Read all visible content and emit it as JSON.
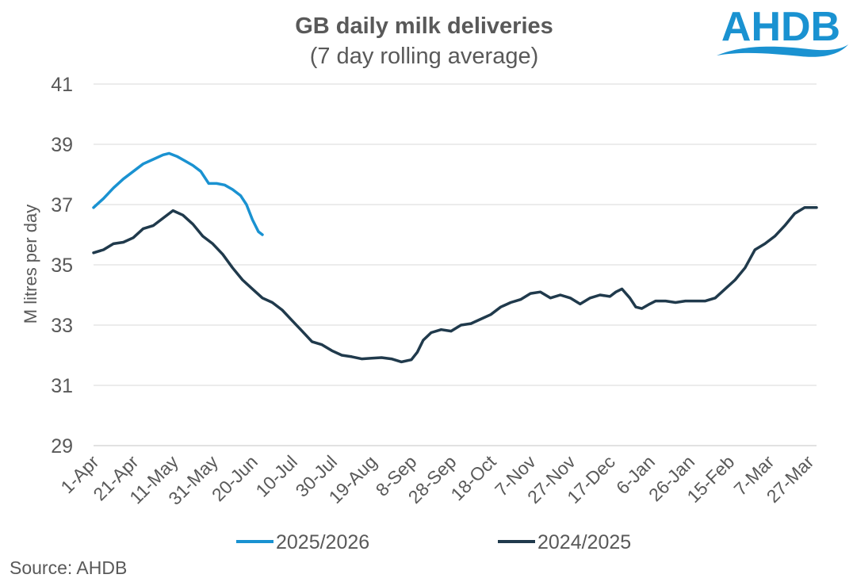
{
  "logo": {
    "text": "AHDB",
    "color": "#1a92d1"
  },
  "source": "Source: AHDB",
  "chart_data": {
    "type": "line",
    "title": "GB daily milk deliveries",
    "subtitle": "(7 day rolling average)",
    "xlabel": "",
    "ylabel": "M litres per day",
    "ylim": [
      29,
      41
    ],
    "yticks": [
      29,
      31,
      33,
      35,
      37,
      39,
      41
    ],
    "xlim": [
      0,
      364
    ],
    "grid": true,
    "legend_position": "bottom",
    "x_tick_labels": [
      "1-Apr",
      "21-Apr",
      "11-May",
      "31-May",
      "20-Jun",
      "10-Jul",
      "30-Jul",
      "19-Aug",
      "8-Sep",
      "28-Sep",
      "18-Oct",
      "7-Nov",
      "27-Nov",
      "17-Dec",
      "6-Jan",
      "26-Jan",
      "15-Feb",
      "7-Mar",
      "27-Mar"
    ],
    "x_tick_positions": [
      0,
      20,
      40,
      60,
      80,
      100,
      120,
      140,
      160,
      180,
      200,
      220,
      240,
      260,
      280,
      300,
      320,
      340,
      360
    ],
    "series": [
      {
        "name": "2025/2026",
        "color": "#1a92d1",
        "points": [
          [
            0,
            36.9
          ],
          [
            5,
            37.2
          ],
          [
            10,
            37.55
          ],
          [
            15,
            37.85
          ],
          [
            20,
            38.1
          ],
          [
            25,
            38.35
          ],
          [
            30,
            38.5
          ],
          [
            35,
            38.65
          ],
          [
            38,
            38.7
          ],
          [
            42,
            38.6
          ],
          [
            46,
            38.45
          ],
          [
            50,
            38.3
          ],
          [
            54,
            38.1
          ],
          [
            58,
            37.7
          ],
          [
            62,
            37.7
          ],
          [
            66,
            37.65
          ],
          [
            70,
            37.5
          ],
          [
            74,
            37.3
          ],
          [
            77,
            37.0
          ],
          [
            80,
            36.5
          ],
          [
            83,
            36.1
          ],
          [
            85,
            36.0
          ]
        ]
      },
      {
        "name": "2024/2025",
        "color": "#203a4c",
        "points": [
          [
            0,
            35.4
          ],
          [
            5,
            35.5
          ],
          [
            10,
            35.7
          ],
          [
            15,
            35.75
          ],
          [
            20,
            35.9
          ],
          [
            25,
            36.2
          ],
          [
            30,
            36.3
          ],
          [
            35,
            36.55
          ],
          [
            40,
            36.8
          ],
          [
            45,
            36.65
          ],
          [
            50,
            36.35
          ],
          [
            55,
            35.95
          ],
          [
            60,
            35.7
          ],
          [
            65,
            35.35
          ],
          [
            70,
            34.9
          ],
          [
            75,
            34.5
          ],
          [
            80,
            34.2
          ],
          [
            85,
            33.9
          ],
          [
            90,
            33.75
          ],
          [
            95,
            33.5
          ],
          [
            100,
            33.15
          ],
          [
            105,
            32.8
          ],
          [
            110,
            32.45
          ],
          [
            115,
            32.35
          ],
          [
            120,
            32.15
          ],
          [
            125,
            32.0
          ],
          [
            130,
            31.95
          ],
          [
            135,
            31.88
          ],
          [
            140,
            31.9
          ],
          [
            145,
            31.92
          ],
          [
            150,
            31.88
          ],
          [
            155,
            31.78
          ],
          [
            160,
            31.85
          ],
          [
            163,
            32.1
          ],
          [
            166,
            32.5
          ],
          [
            170,
            32.75
          ],
          [
            175,
            32.85
          ],
          [
            180,
            32.8
          ],
          [
            185,
            33.0
          ],
          [
            190,
            33.05
          ],
          [
            195,
            33.2
          ],
          [
            200,
            33.35
          ],
          [
            205,
            33.6
          ],
          [
            210,
            33.75
          ],
          [
            215,
            33.85
          ],
          [
            220,
            34.05
          ],
          [
            225,
            34.1
          ],
          [
            230,
            33.9
          ],
          [
            235,
            34.0
          ],
          [
            240,
            33.9
          ],
          [
            245,
            33.7
          ],
          [
            250,
            33.9
          ],
          [
            255,
            34.0
          ],
          [
            260,
            33.95
          ],
          [
            263,
            34.1
          ],
          [
            266,
            34.2
          ],
          [
            270,
            33.9
          ],
          [
            273,
            33.6
          ],
          [
            276,
            33.55
          ],
          [
            280,
            33.7
          ],
          [
            283,
            33.8
          ],
          [
            288,
            33.8
          ],
          [
            293,
            33.75
          ],
          [
            298,
            33.8
          ],
          [
            303,
            33.8
          ],
          [
            308,
            33.8
          ],
          [
            313,
            33.9
          ],
          [
            318,
            34.2
          ],
          [
            323,
            34.5
          ],
          [
            328,
            34.9
          ],
          [
            333,
            35.5
          ],
          [
            338,
            35.7
          ],
          [
            343,
            35.95
          ],
          [
            348,
            36.3
          ],
          [
            353,
            36.7
          ],
          [
            358,
            36.9
          ],
          [
            364,
            36.9
          ]
        ]
      }
    ]
  }
}
